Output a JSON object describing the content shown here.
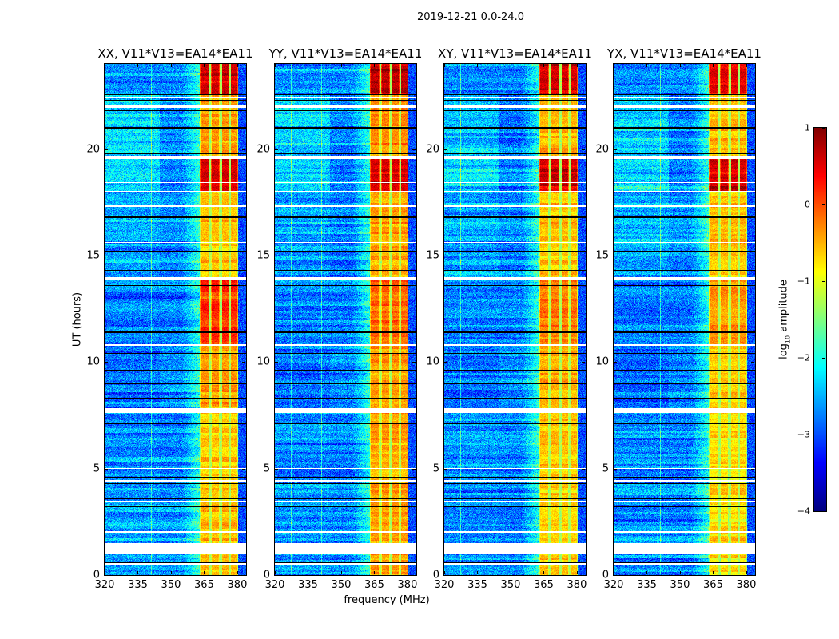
{
  "chart_data": {
    "type": "heatmap",
    "title": "2019-12-21 0.0-24.0",
    "xlabel": "frequency (MHz)",
    "ylabel": "UT (hours)",
    "xlim": [
      320,
      384
    ],
    "ylim": [
      0,
      24
    ],
    "xticks": [
      320,
      335,
      350,
      365,
      380
    ],
    "yticks": [
      0,
      5,
      10,
      15,
      20
    ],
    "panels": [
      {
        "title": "XX, V11*V13=EA14*EA11"
      },
      {
        "title": "YY, V11*V13=EA14*EA11"
      },
      {
        "title": "XY, V11*V13=EA14*EA11"
      },
      {
        "title": "YX, V11*V13=EA14*EA11"
      }
    ],
    "colormap": "jet",
    "colorbar": {
      "label_main": "log",
      "label_sub": "10",
      "label_rest": " amplitude",
      "range": [
        -4,
        1
      ],
      "ticks": [
        1,
        0,
        -1,
        -2,
        -3,
        -4
      ],
      "tick_labels": [
        "1",
        "0",
        "−1",
        "−2",
        "−3",
        "−4"
      ]
    },
    "background_log_amplitude": -2.7,
    "rfi_bands_mhz": [
      [
        363,
        367.3
      ],
      [
        368,
        372.2
      ],
      [
        373,
        376.3
      ],
      [
        377,
        380.5
      ]
    ],
    "flagged_hours": [
      [
        1.0,
        1.5
      ],
      [
        7.6,
        7.85
      ],
      [
        13.85,
        14.0
      ],
      [
        10.75,
        10.85
      ],
      [
        19.55,
        19.7
      ],
      [
        21.95,
        22.1
      ],
      [
        22.4,
        22.45
      ],
      [
        0.5,
        0.55
      ],
      [
        2.0,
        2.05
      ],
      [
        3.45,
        3.5
      ],
      [
        4.4,
        4.45
      ],
      [
        5.0,
        5.03
      ],
      [
        12.7,
        12.73
      ],
      [
        15.6,
        15.65
      ],
      [
        17.3,
        17.35
      ],
      [
        18.0,
        18.05
      ],
      [
        18.4,
        18.45
      ]
    ],
    "black_line_hours": [
      0.6,
      1.55,
      3.2,
      3.6,
      4.3,
      4.6,
      7.1,
      8.3,
      9.0,
      9.6,
      10.4,
      10.9,
      11.4,
      13.6,
      14.3,
      15.2,
      16.8,
      17.6,
      19.6,
      19.8,
      21.0,
      21.8,
      22.3,
      22.55
    ],
    "epochs": [
      {
        "hours": [
          22.55,
          24
        ],
        "row_level": -2.7,
        "band_level": [
          0.6,
          0.7,
          0.6,
          0.5
        ]
      },
      {
        "hours": [
          19.7,
          22.55
        ],
        "row_level": -1.9,
        "band_level": [
          -0.4,
          -0.3,
          -0.4,
          -0.5
        ]
      },
      {
        "hours": [
          18.0,
          19.7
        ],
        "row_level": -1.8,
        "band_level": [
          0.6,
          0.6,
          0.6,
          0.6
        ]
      },
      {
        "hours": [
          13.9,
          18.0
        ],
        "row_level": -2.4,
        "band_level": [
          -0.6,
          -0.4,
          -0.6,
          -0.6
        ]
      },
      {
        "hours": [
          10.8,
          13.9
        ],
        "row_level": -2.7,
        "band_level": [
          0.2,
          -0.1,
          -0.2,
          -0.3
        ]
      },
      {
        "hours": [
          7.8,
          10.8
        ],
        "row_level": -3.0,
        "band_level": [
          -0.4,
          -0.4,
          -0.5,
          -0.6
        ]
      },
      {
        "hours": [
          0,
          7.8
        ],
        "row_level": -2.6,
        "band_level": [
          -0.6,
          -0.4,
          -0.6,
          -0.7
        ]
      }
    ]
  }
}
